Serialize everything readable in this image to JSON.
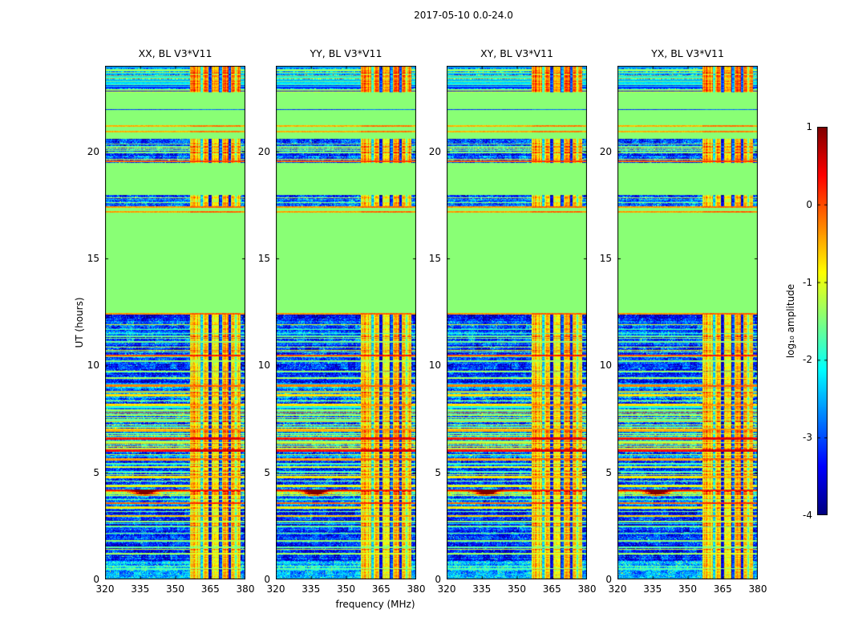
{
  "figure": {
    "title": "2017-05-10 0.0-24.0",
    "xlabel": "frequency (MHz)",
    "ylabel": "UT (hours)"
  },
  "panels": [
    {
      "title": "XX, BL V3*V11"
    },
    {
      "title": "YY, BL V3*V11"
    },
    {
      "title": "XY, BL V3*V11"
    },
    {
      "title": "YX, BL V3*V11"
    }
  ],
  "axes": {
    "x": {
      "min": 320,
      "max": 380,
      "ticks": [
        320,
        335,
        350,
        365,
        380
      ]
    },
    "y": {
      "min": 0,
      "max": 24,
      "ticks": [
        0,
        5,
        10,
        15,
        20
      ]
    }
  },
  "colorbar": {
    "label": "log₁₀ amplitude",
    "min": -4,
    "max": 1,
    "ticks": [
      1,
      0,
      -1,
      -2,
      -3,
      -4
    ],
    "colormap": "jet"
  },
  "chart_data": {
    "type": "heatmap",
    "title": "2017-05-10 0.0-24.0",
    "xlabel": "frequency (MHz)",
    "ylabel": "UT (hours)",
    "value_label": "log₁₀ amplitude",
    "x_range_mhz": [
      320,
      380
    ],
    "y_range_hours": [
      0,
      24
    ],
    "value_range": [
      -4,
      1
    ],
    "colormap": "jet",
    "panels": [
      "XX, BL V3*V11",
      "YY, BL V3*V11",
      "XY, BL V3*V11",
      "YX, BL V3*V11"
    ],
    "flat_fill_value": -1.45,
    "rfi": {
      "band": [
        356.5,
        377.8
      ],
      "base": -0.85,
      "gaps_strong": [
        364.9,
        369.4,
        373.2
      ],
      "gaps_medium": [
        361.3,
        375.9
      ]
    },
    "time_bands": [
      {
        "t": [
          0,
          0.85
        ],
        "type": "noise",
        "base": -2.5,
        "var": 0.55,
        "line_density": 0.25,
        "stripe": [
          -2.6,
          -1.0
        ]
      },
      {
        "t": [
          0.85,
          3.3
        ],
        "type": "noise",
        "base": -3.2,
        "var": 0.5,
        "line_density": 0.08,
        "stripe": [
          -2.2,
          -0.8
        ]
      },
      {
        "t": [
          3.3,
          5.5
        ],
        "type": "noise",
        "base": -3.05,
        "var": 0.55,
        "line_density": 0.18,
        "stripe": [
          -2.3,
          -0.5
        ]
      },
      {
        "t": [
          5.5,
          9.15
        ],
        "type": "noise",
        "base": -2.95,
        "var": 0.6,
        "line_density": 0.4,
        "stripe": [
          -2.4,
          0.1
        ]
      },
      {
        "t": [
          9.15,
          12.42
        ],
        "type": "noise",
        "base": -3.2,
        "var": 0.5,
        "line_density": 0.1,
        "stripe": [
          -2.2,
          -0.8
        ]
      },
      {
        "t": [
          12.42,
          17.45
        ],
        "type": "flat"
      },
      {
        "t": [
          17.45,
          17.95
        ],
        "type": "noise",
        "base": -2.9,
        "var": 0.55,
        "line_density": 0.2,
        "stripe": [
          -2.2,
          -0.6
        ]
      },
      {
        "t": [
          17.95,
          19.47
        ],
        "type": "flat"
      },
      {
        "t": [
          19.47,
          20.6
        ],
        "type": "noise",
        "base": -3.0,
        "var": 0.55,
        "line_density": 0.25,
        "stripe": [
          -2.2,
          -0.4
        ]
      },
      {
        "t": [
          20.6,
          22.75
        ],
        "type": "flat"
      },
      {
        "t": [
          22.75,
          24.0
        ],
        "type": "noise",
        "base": -2.6,
        "var": 0.7,
        "line_density": 0.8,
        "stripe": [
          -3.3,
          -1.0
        ]
      }
    ],
    "line_events": [
      [
        12.4,
        -0.35,
        2
      ],
      [
        17.18,
        -0.4,
        2
      ],
      [
        17.4,
        -0.4,
        2
      ],
      [
        19.52,
        -0.15,
        2
      ],
      [
        20.93,
        -0.5,
        2
      ],
      [
        21.18,
        -0.5,
        2
      ],
      [
        21.95,
        -3.1,
        1
      ],
      [
        10.45,
        0.0,
        2
      ],
      [
        9.05,
        -0.3,
        2
      ],
      [
        8.12,
        -0.7,
        2
      ],
      [
        7.0,
        -0.6,
        2
      ],
      [
        6.6,
        0.25,
        3
      ],
      [
        6.02,
        0.3,
        3
      ],
      [
        5.62,
        -0.4,
        2
      ],
      [
        4.8,
        -0.8,
        2
      ],
      [
        4.18,
        -0.2,
        2
      ],
      [
        3.55,
        -0.1,
        2
      ],
      [
        2.95,
        -0.6,
        2
      ],
      [
        11.5,
        -1.9,
        1
      ],
      [
        11.1,
        -1.6,
        1
      ],
      [
        10.2,
        -1.5,
        1
      ],
      [
        9.7,
        -1.7,
        1
      ],
      [
        9.4,
        -1.1,
        1
      ],
      [
        8.8,
        -1.5,
        1
      ],
      [
        8.6,
        -0.9,
        1
      ],
      [
        8.35,
        -1.3,
        1
      ],
      [
        7.9,
        -1.4,
        1
      ],
      [
        7.68,
        -0.9,
        1
      ],
      [
        7.45,
        -1.5,
        1
      ],
      [
        7.22,
        -1.0,
        1
      ],
      [
        6.82,
        -1.3,
        1
      ],
      [
        6.4,
        -1.2,
        1
      ],
      [
        6.22,
        -0.8,
        1
      ],
      [
        5.82,
        -1.1,
        1
      ],
      [
        5.42,
        -1.5,
        1
      ],
      [
        5.22,
        -1.0,
        1
      ],
      [
        5.0,
        -1.3,
        1
      ],
      [
        4.6,
        -1.4,
        1
      ],
      [
        4.38,
        -1.0,
        1
      ],
      [
        3.92,
        -1.2,
        1
      ],
      [
        3.74,
        -1.6,
        1
      ],
      [
        3.38,
        -1.1,
        1
      ],
      [
        3.18,
        -1.5,
        1
      ],
      [
        2.7,
        -1.4,
        1
      ],
      [
        2.45,
        -1.8,
        1
      ],
      [
        2.15,
        -1.5,
        1
      ],
      [
        1.8,
        -1.4,
        1
      ],
      [
        1.5,
        -1.7,
        1
      ],
      [
        1.2,
        -1.3,
        1
      ],
      [
        0.5,
        -1.6,
        1
      ]
    ],
    "blob": {
      "t": 4.06,
      "f_mhz": 337,
      "sigma_f": 3.2,
      "sigma_t": 0.09,
      "peak": 3.4,
      "streak": 1.4
    }
  }
}
